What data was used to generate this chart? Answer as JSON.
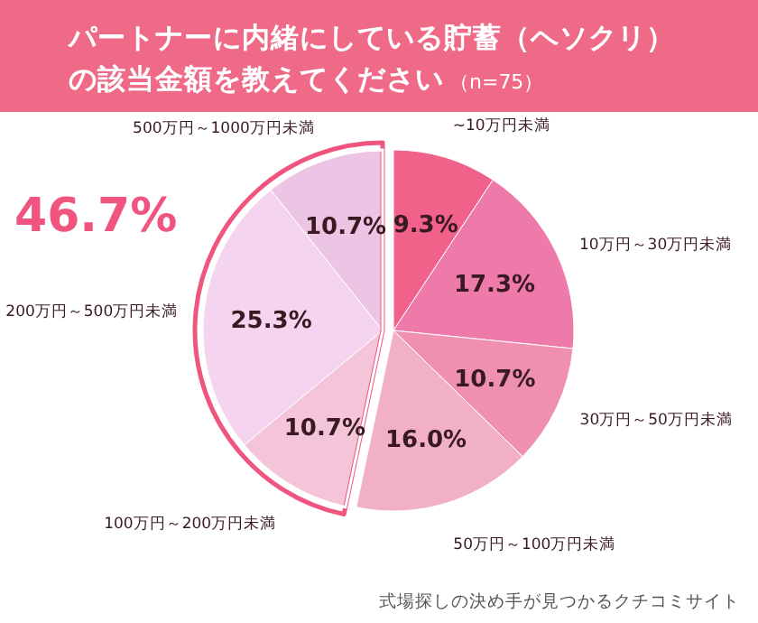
{
  "chart_data": {
    "type": "pie",
    "title": "パートナーに内緒にしている貯蓄（ヘソクリ）の該当金額を教えてください",
    "subtitle": "（n=75）",
    "categories": [
      "~10万円未満",
      "10万円～30万円未満",
      "30万円～50万円未満",
      "50万円～100万円未満",
      "100万円～200万円未満",
      "200万円～500万円未満",
      "500万円～1000万円未満"
    ],
    "values": [
      9.3,
      17.3,
      10.7,
      16.0,
      10.7,
      25.3,
      10.7
    ],
    "colors": [
      "#f0628a",
      "#ee7aaa",
      "#f090b0",
      "#f2b0c8",
      "#f4c4d8",
      "#f4d4ee",
      "#ecc4e4"
    ],
    "value_labels": [
      "9.3%",
      "17.3%",
      "10.7%",
      "16.0%",
      "10.7%",
      "25.3%",
      "10.7%"
    ],
    "annotations": [
      "46.7%",
      "式場探しの決め手が見つかるクチコミサイト"
    ]
  }
}
